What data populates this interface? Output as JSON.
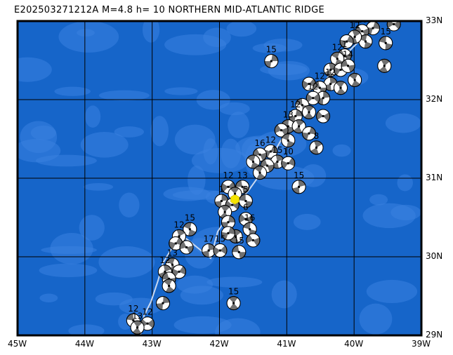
{
  "title": "E202503271212A M=4.8 h= 10 NORTHERN MID-ATLANTIC RIDGE",
  "map": {
    "lon_range": [
      -45,
      -39
    ],
    "lat_range": [
      29,
      33
    ],
    "x_ticks": [
      "45W",
      "44W",
      "43W",
      "42W",
      "41W",
      "40W",
      "39W"
    ],
    "y_ticks": [
      "33N",
      "32N",
      "31N",
      "30N",
      "29N"
    ],
    "colors": {
      "ocean": "#1665c9",
      "ocean_light": "#3b82e0",
      "ball_dark": "#707070",
      "ball_light": "#ffffff",
      "epicenter": "#f5e400",
      "boundary": "#c8d8f0"
    },
    "epicenter": {
      "lon": -41.77,
      "lat": 30.73
    },
    "events": [
      {
        "lon": -41.23,
        "lat": 32.49,
        "depth": "15"
      },
      {
        "lon": -39.41,
        "lat": 32.96,
        "depth": "12"
      },
      {
        "lon": -39.53,
        "lat": 32.72,
        "depth": "15"
      },
      {
        "lon": -39.55,
        "lat": 32.43,
        "depth": ""
      },
      {
        "lon": -39.72,
        "lat": 32.91,
        "depth": "12"
      },
      {
        "lon": -39.88,
        "lat": 32.87,
        "depth": "16"
      },
      {
        "lon": -39.83,
        "lat": 32.74,
        "depth": ""
      },
      {
        "lon": -39.99,
        "lat": 32.8,
        "depth": "12"
      },
      {
        "lon": -40.11,
        "lat": 32.74,
        "depth": ""
      },
      {
        "lon": -40.14,
        "lat": 32.56,
        "depth": "1"
      },
      {
        "lon": -40.25,
        "lat": 32.52,
        "depth": "12"
      },
      {
        "lon": -40.35,
        "lat": 32.38,
        "depth": ""
      },
      {
        "lon": -40.2,
        "lat": 32.38,
        "depth": ""
      },
      {
        "lon": -40.09,
        "lat": 32.43,
        "depth": "14"
      },
      {
        "lon": -39.99,
        "lat": 32.25,
        "depth": ""
      },
      {
        "lon": -40.35,
        "lat": 32.2,
        "depth": "12"
      },
      {
        "lon": -40.67,
        "lat": 32.2,
        "depth": ""
      },
      {
        "lon": -40.51,
        "lat": 32.15,
        "depth": "12"
      },
      {
        "lon": -40.2,
        "lat": 32.15,
        "depth": ""
      },
      {
        "lon": -40.46,
        "lat": 32.02,
        "depth": ""
      },
      {
        "lon": -40.61,
        "lat": 32.02,
        "depth": "12"
      },
      {
        "lon": -40.77,
        "lat": 31.93,
        "depth": ""
      },
      {
        "lon": -40.67,
        "lat": 31.84,
        "depth": ""
      },
      {
        "lon": -40.87,
        "lat": 31.79,
        "depth": "12"
      },
      {
        "lon": -40.46,
        "lat": 31.79,
        "depth": ""
      },
      {
        "lon": -40.98,
        "lat": 31.66,
        "depth": "13"
      },
      {
        "lon": -40.82,
        "lat": 31.66,
        "depth": ""
      },
      {
        "lon": -40.67,
        "lat": 31.57,
        "depth": ""
      },
      {
        "lon": -41.08,
        "lat": 31.61,
        "depth": ""
      },
      {
        "lon": -40.98,
        "lat": 31.48,
        "depth": ""
      },
      {
        "lon": -40.56,
        "lat": 31.39,
        "depth": "8"
      },
      {
        "lon": -41.24,
        "lat": 31.34,
        "depth": "12"
      },
      {
        "lon": -41.4,
        "lat": 31.3,
        "depth": "16"
      },
      {
        "lon": -41.5,
        "lat": 31.21,
        "depth": ""
      },
      {
        "lon": -41.14,
        "lat": 31.21,
        "depth": "15"
      },
      {
        "lon": -40.98,
        "lat": 31.19,
        "depth": "10"
      },
      {
        "lon": -41.29,
        "lat": 31.16,
        "depth": ""
      },
      {
        "lon": -41.4,
        "lat": 31.07,
        "depth": ""
      },
      {
        "lon": -40.82,
        "lat": 30.89,
        "depth": "15"
      },
      {
        "lon": -41.87,
        "lat": 30.89,
        "depth": "12"
      },
      {
        "lon": -41.66,
        "lat": 30.89,
        "depth": "13"
      },
      {
        "lon": -41.77,
        "lat": 30.8,
        "depth": ""
      },
      {
        "lon": -41.97,
        "lat": 30.71,
        "depth": "1"
      },
      {
        "lon": -41.81,
        "lat": 30.66,
        "depth": ""
      },
      {
        "lon": -41.61,
        "lat": 30.71,
        "depth": "5"
      },
      {
        "lon": -41.92,
        "lat": 30.57,
        "depth": ""
      },
      {
        "lon": -41.87,
        "lat": 30.44,
        "depth": ""
      },
      {
        "lon": -41.61,
        "lat": 30.48,
        "depth": "6"
      },
      {
        "lon": -41.55,
        "lat": 30.35,
        "depth": "16"
      },
      {
        "lon": -41.76,
        "lat": 30.26,
        "depth": ""
      },
      {
        "lon": -41.87,
        "lat": 30.3,
        "depth": ""
      },
      {
        "lon": -41.5,
        "lat": 30.21,
        "depth": ""
      },
      {
        "lon": -42.44,
        "lat": 30.35,
        "depth": "15"
      },
      {
        "lon": -42.6,
        "lat": 30.26,
        "depth": "12"
      },
      {
        "lon": -42.65,
        "lat": 30.17,
        "depth": ""
      },
      {
        "lon": -42.49,
        "lat": 30.12,
        "depth": ""
      },
      {
        "lon": -42.7,
        "lat": 29.9,
        "depth": "13"
      },
      {
        "lon": -42.81,
        "lat": 29.81,
        "depth": "12"
      },
      {
        "lon": -42.6,
        "lat": 29.81,
        "depth": ""
      },
      {
        "lon": -42.75,
        "lat": 29.72,
        "depth": ""
      },
      {
        "lon": -42.75,
        "lat": 29.63,
        "depth": ""
      },
      {
        "lon": -42.16,
        "lat": 30.08,
        "depth": "17"
      },
      {
        "lon": -41.99,
        "lat": 30.08,
        "depth": "15"
      },
      {
        "lon": -41.71,
        "lat": 30.06,
        "depth": "15"
      },
      {
        "lon": -41.79,
        "lat": 29.41,
        "depth": "15"
      },
      {
        "lon": -42.84,
        "lat": 29.41,
        "depth": ""
      },
      {
        "lon": -43.07,
        "lat": 29.15,
        "depth": "12"
      },
      {
        "lon": -43.28,
        "lat": 29.19,
        "depth": "12"
      },
      {
        "lon": -43.22,
        "lat": 29.1,
        "depth": "13"
      }
    ]
  }
}
